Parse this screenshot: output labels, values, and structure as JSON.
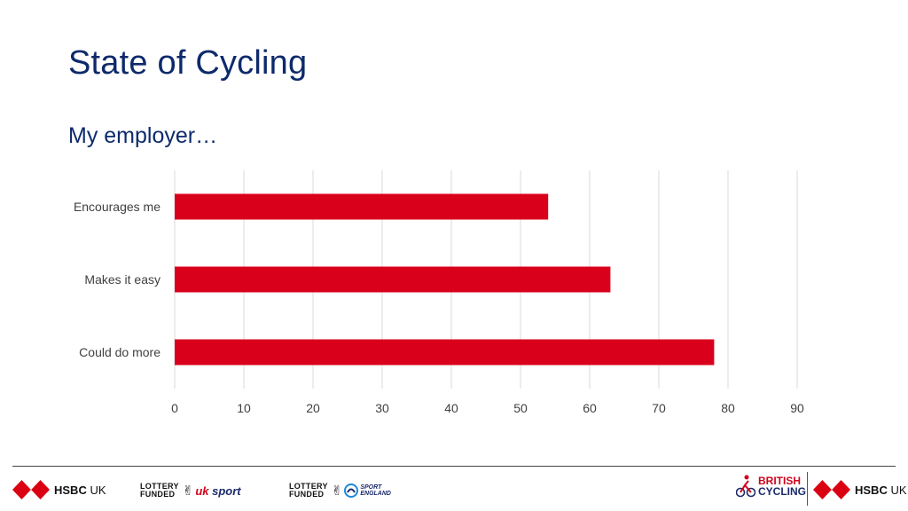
{
  "header": {
    "title": "State of Cycling",
    "subtitle": "My employer…"
  },
  "chart_data": {
    "type": "bar",
    "orientation": "horizontal",
    "categories": [
      "Encourages me",
      "Makes it easy",
      "Could do more"
    ],
    "values": [
      54,
      63,
      78
    ],
    "xlim": [
      0,
      90
    ],
    "xticks": [
      0,
      10,
      20,
      30,
      40,
      50,
      60,
      70,
      80,
      90
    ],
    "grid": true,
    "legend": "none",
    "bar_color": "#d9001b",
    "title": "",
    "xlabel": "",
    "ylabel": ""
  },
  "footer": {
    "hsbc_bold": "HSBC",
    "hsbc_suffix": "UK",
    "lottery_line1": "LOTTERY",
    "lottery_line2": "FUNDED",
    "uksport_uk": "uk",
    "uksport_sport": "sport",
    "sportengland_line1": "SPORT",
    "sportengland_line2": "ENGLAND",
    "british_line1": "BRITISH",
    "british_line2": "CYCLING",
    "hsbc_red": "#db0011"
  }
}
